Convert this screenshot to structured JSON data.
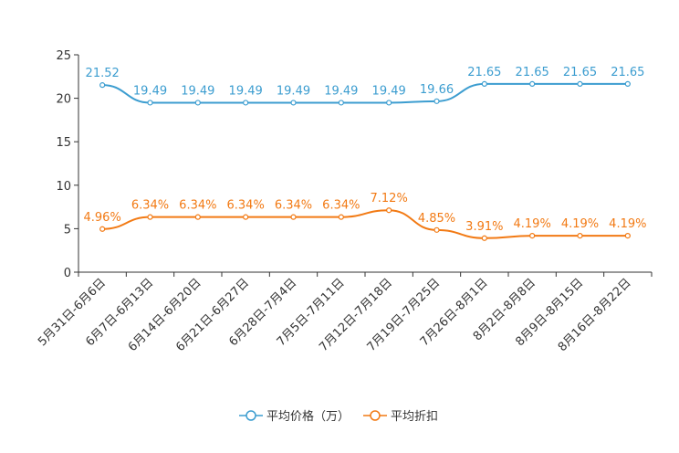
{
  "chart_data": {
    "type": "line",
    "title": "",
    "xlabel": "",
    "ylabel": "",
    "ylim": [
      0,
      25
    ],
    "yticks": [
      0,
      5,
      10,
      15,
      20,
      25
    ],
    "grid": false,
    "legend_position": "bottom-center",
    "categories": [
      "5月31日-6月6日",
      "6月7日-6月13日",
      "6月14日-6月20日",
      "6月21日-6月27日",
      "6月28日-7月4日",
      "7月5日-7月11日",
      "7月12日-7月18日",
      "7月19日-7月25日",
      "7月26日-8月1日",
      "8月2日-8月8日",
      "8月9日-8月15日",
      "8月16日-8月22日"
    ],
    "series": [
      {
        "name": "平均价格（万）",
        "color": "#3c9dd0",
        "values": [
          21.52,
          19.49,
          19.49,
          19.49,
          19.49,
          19.49,
          19.49,
          19.66,
          21.65,
          21.65,
          21.65,
          21.65
        ],
        "labels": [
          "21.52",
          "19.49",
          "19.49",
          "19.49",
          "19.49",
          "19.49",
          "19.49",
          "19.66",
          "21.65",
          "21.65",
          "21.65",
          "21.65"
        ]
      },
      {
        "name": "平均折扣",
        "color": "#f27a14",
        "values": [
          4.96,
          6.34,
          6.34,
          6.34,
          6.34,
          6.34,
          7.12,
          4.85,
          3.91,
          4.19,
          4.19,
          4.19
        ],
        "labels": [
          "4.96%",
          "6.34%",
          "6.34%",
          "6.34%",
          "6.34%",
          "6.34%",
          "7.12%",
          "4.85%",
          "3.91%",
          "4.19%",
          "4.19%",
          "4.19%"
        ]
      }
    ]
  }
}
